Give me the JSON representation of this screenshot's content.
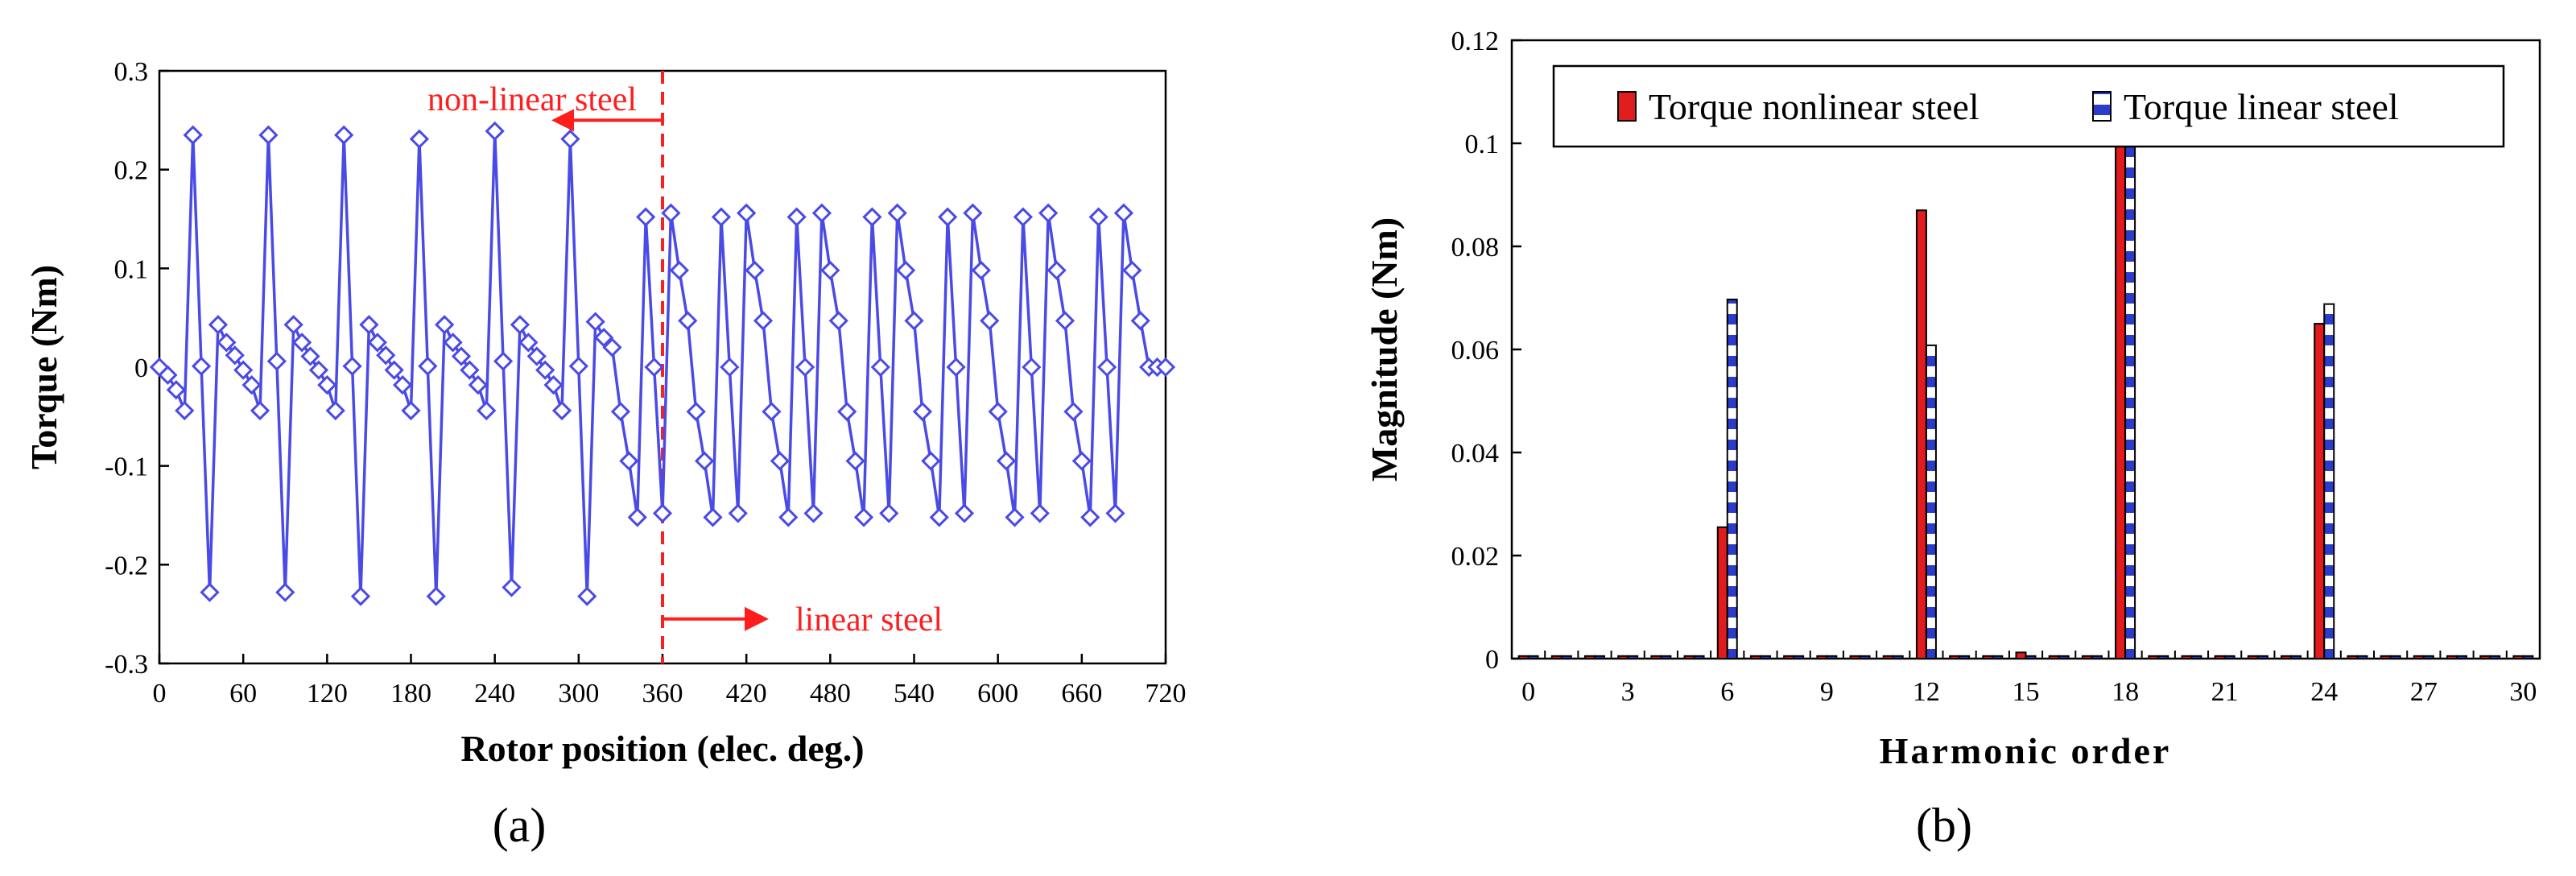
{
  "figure": {
    "panel_a_label": "(a)",
    "panel_b_label": "(b)"
  },
  "colors": {
    "line": "#4a4ae6",
    "annotation": "#ff1e1e",
    "bar_nonlinear": "#e01c1c",
    "bar_linear_stripe": "#2a3cc8"
  },
  "chart_data": [
    {
      "type": "line",
      "title": "",
      "xlabel": "Rotor position (elec. deg.)",
      "ylabel": "Torque (Nm)",
      "xlim": [
        0,
        720
      ],
      "ylim": [
        -0.3,
        0.3
      ],
      "xticks": [
        0,
        60,
        120,
        180,
        240,
        300,
        360,
        420,
        480,
        540,
        600,
        660,
        720
      ],
      "yticks": [
        -0.3,
        -0.2,
        -0.1,
        0,
        0.1,
        0.2,
        0.3
      ],
      "annotations": {
        "nonlinear": "non-linear steel",
        "linear": "linear steel",
        "divider_x": 360
      },
      "series": [
        {
          "name": "Torque",
          "marker": "diamond",
          "x": [
            0,
            6,
            12,
            18,
            24,
            30,
            36,
            42,
            48,
            54,
            60,
            66,
            72,
            78,
            84,
            90,
            96,
            102,
            108,
            114,
            120,
            126,
            132,
            138,
            144,
            150,
            156,
            162,
            168,
            174,
            180,
            186,
            192,
            198,
            204,
            210,
            216,
            222,
            228,
            234,
            240,
            246,
            252,
            258,
            264,
            270,
            276,
            282,
            288,
            294,
            300,
            306,
            312,
            318,
            324,
            330,
            336,
            342,
            348,
            354,
            360,
            366,
            372,
            378,
            384,
            390,
            396,
            402,
            408,
            414,
            420,
            426,
            432,
            438,
            444,
            450,
            456,
            462,
            468,
            474,
            480,
            486,
            492,
            498,
            504,
            510,
            516,
            522,
            528,
            534,
            540,
            546,
            552,
            558,
            564,
            570,
            576,
            582,
            588,
            594,
            600,
            606,
            612,
            618,
            624,
            630,
            636,
            642,
            648,
            654,
            660,
            666,
            672,
            678,
            684,
            690,
            696,
            702,
            708,
            714,
            720
          ],
          "y": [
            0,
            -0.008,
            -0.023,
            -0.044,
            0.235,
            0.001,
            -0.228,
            0.043,
            0.025,
            0.012,
            -0.003,
            -0.018,
            -0.044,
            0.235,
            0.006,
            -0.228,
            0.043,
            0.025,
            0.011,
            -0.003,
            -0.018,
            -0.044,
            0.235,
            0.001,
            -0.232,
            0.043,
            0.025,
            0.012,
            -0.003,
            -0.018,
            -0.044,
            0.231,
            0.001,
            -0.232,
            0.043,
            0.025,
            0.011,
            -0.003,
            -0.018,
            -0.044,
            0.239,
            0.006,
            -0.223,
            0.043,
            0.025,
            0.011,
            -0.003,
            -0.018,
            -0.044,
            0.231,
            0.001,
            -0.232,
            0.046,
            0.03,
            0.02,
            -0.045,
            -0.095,
            -0.152,
            0.152,
            0.0,
            -0.148,
            0.156,
            0.098,
            0.047,
            -0.045,
            -0.095,
            -0.152,
            0.152,
            0.0,
            -0.148,
            0.156,
            0.098,
            0.047,
            -0.045,
            -0.095,
            -0.152,
            0.152,
            0.0,
            -0.148,
            0.156,
            0.098,
            0.047,
            -0.045,
            -0.095,
            -0.152,
            0.152,
            0.0,
            -0.148,
            0.156,
            0.098,
            0.047,
            -0.045,
            -0.095,
            -0.152,
            0.152,
            0.0,
            -0.148,
            0.156,
            0.098,
            0.047,
            -0.045,
            -0.095,
            -0.152,
            0.152,
            0.0,
            -0.148,
            0.156,
            0.098,
            0.047,
            -0.045,
            -0.095,
            -0.152,
            0.152,
            0.0,
            -0.148,
            0.156,
            0.098,
            0.047,
            0.0,
            0.0,
            0.0
          ]
        }
      ]
    },
    {
      "type": "bar",
      "title": "",
      "xlabel": "Harmonic order",
      "ylabel": "Magnitude (Nm)",
      "ylim": [
        0,
        0.12
      ],
      "yticks": [
        0,
        0.02,
        0.04,
        0.06,
        0.08,
        0.1,
        0.12
      ],
      "xtick_labels": [
        "0",
        "3",
        "6",
        "9",
        "12",
        "15",
        "18",
        "21",
        "24",
        "27",
        "30"
      ],
      "categories": [
        0,
        1,
        2,
        3,
        4,
        5,
        6,
        7,
        8,
        9,
        10,
        11,
        12,
        13,
        14,
        15,
        16,
        17,
        18,
        19,
        20,
        21,
        22,
        23,
        24,
        25,
        26,
        27,
        28,
        29,
        30
      ],
      "legend_position": "top",
      "series": [
        {
          "name": "Torque nonlinear steel",
          "values": [
            0.0005,
            0.0005,
            0.0005,
            0.0005,
            0.0005,
            0.0005,
            0.0255,
            0.0005,
            0.0005,
            0.0005,
            0.0005,
            0.0005,
            0.087,
            0.0005,
            0.0005,
            0.0012,
            0.0005,
            0.0005,
            0.0995,
            0.0005,
            0.0005,
            0.0005,
            0.0005,
            0.0005,
            0.065,
            0.0005,
            0.0005,
            0.0005,
            0.0005,
            0.0005,
            0.0005
          ]
        },
        {
          "name": "Torque linear steel",
          "values": [
            0.0005,
            0.0005,
            0.0005,
            0.0005,
            0.0005,
            0.0005,
            0.0697,
            0.0005,
            0.0005,
            0.0005,
            0.0005,
            0.0005,
            0.0608,
            0.0005,
            0.0005,
            0.0005,
            0.0005,
            0.0005,
            0.0995,
            0.0005,
            0.0005,
            0.0005,
            0.0005,
            0.0005,
            0.0688,
            0.0005,
            0.0005,
            0.0005,
            0.0005,
            0.0005,
            0.0005
          ]
        }
      ]
    }
  ]
}
